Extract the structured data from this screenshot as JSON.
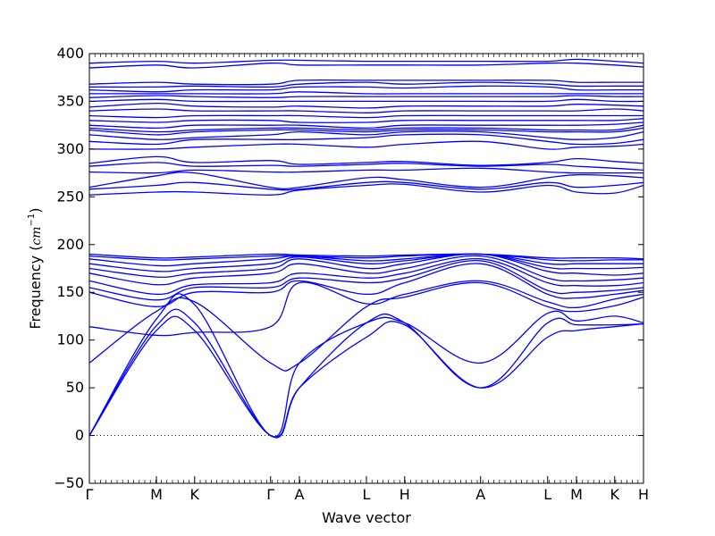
{
  "chart_data": {
    "type": "line",
    "title": "",
    "xlabel": "Wave vector",
    "ylabel": "Frequency (cm⁻¹)",
    "ylabel_main": "Frequency (",
    "ylabel_unit": "cm",
    "ylabel_exp": "−1",
    "ylabel_close": ")",
    "ylim": [
      -50,
      400
    ],
    "yticks": [
      -50,
      0,
      50,
      100,
      150,
      200,
      250,
      300,
      350,
      400
    ],
    "xlim": [
      0,
      1
    ],
    "xticks": [
      {
        "label": "Γ",
        "x": 0.0
      },
      {
        "label": "M",
        "x": 0.121
      },
      {
        "label": "K",
        "x": 0.19
      },
      {
        "label": "Γ",
        "x": 0.327
      },
      {
        "label": "A",
        "x": 0.379
      },
      {
        "label": "L",
        "x": 0.5
      },
      {
        "label": "H",
        "x": 0.569
      },
      {
        "label": "A",
        "x": 0.706
      },
      {
        "label": "L",
        "x": 0.827
      },
      {
        "label": "M",
        "x": 0.879
      },
      {
        "label": "K",
        "x": 0.948
      },
      {
        "label": "H",
        "x": 1.0
      }
    ],
    "zero_line": {
      "y": 0,
      "style": "dotted"
    },
    "line_color": "#0000ff",
    "grid": false,
    "series": [
      {
        "x": [
          0,
          0.121,
          0.19,
          0.327,
          0.379,
          0.5,
          0.569,
          0.706,
          0.827,
          0.879,
          0.948,
          1
        ],
        "y": [
          0,
          110,
          110,
          0,
          50,
          103,
          116,
          50,
          103,
          110,
          114,
          117
        ]
      },
      {
        "x": [
          0,
          0.121,
          0.19,
          0.327,
          0.379,
          0.5,
          0.569,
          0.706,
          0.827,
          0.879,
          0.948,
          1
        ],
        "y": [
          0,
          115,
          118,
          0,
          50,
          118,
          118,
          50,
          118,
          116,
          116,
          117
        ]
      },
      {
        "x": [
          0,
          0.121,
          0.19,
          0.327,
          0.379,
          0.5,
          0.569,
          0.706,
          0.827,
          0.879,
          0.948,
          1
        ],
        "y": [
          0,
          122,
          137,
          0,
          76,
          118,
          118,
          76,
          128,
          120,
          125,
          118
        ]
      },
      {
        "x": [
          0,
          0.121,
          0.19,
          0.327,
          0.379,
          0.5,
          0.569,
          0.706,
          0.827,
          0.879,
          0.948,
          1
        ],
        "y": [
          76,
          130,
          140,
          76,
          76,
          135,
          145,
          160,
          135,
          130,
          136,
          145
        ]
      },
      {
        "x": [
          0,
          0.121,
          0.19,
          0.327,
          0.379,
          0.5,
          0.569,
          0.706,
          0.827,
          0.879,
          0.948,
          1
        ],
        "y": [
          114,
          105,
          108,
          114,
          160,
          138,
          148,
          162,
          140,
          134,
          143,
          148
        ]
      },
      {
        "x": [
          0,
          0.121,
          0.19,
          0.327,
          0.379,
          0.5,
          0.569,
          0.706,
          0.827,
          0.879,
          0.948,
          1
        ],
        "y": [
          150,
          135,
          150,
          150,
          162,
          148,
          160,
          180,
          148,
          144,
          148,
          152
        ]
      },
      {
        "x": [
          0,
          0.121,
          0.19,
          0.327,
          0.379,
          0.5,
          0.569,
          0.706,
          0.827,
          0.879,
          0.948,
          1
        ],
        "y": [
          155,
          142,
          155,
          155,
          165,
          160,
          165,
          183,
          152,
          150,
          152,
          155
        ]
      },
      {
        "x": [
          0,
          0.121,
          0.19,
          0.327,
          0.379,
          0.5,
          0.569,
          0.706,
          0.827,
          0.879,
          0.948,
          1
        ],
        "y": [
          162,
          148,
          158,
          160,
          170,
          165,
          170,
          185,
          160,
          157,
          157,
          160
        ]
      },
      {
        "x": [
          0,
          0.121,
          0.19,
          0.327,
          0.379,
          0.5,
          0.569,
          0.706,
          0.827,
          0.879,
          0.948,
          1
        ],
        "y": [
          170,
          158,
          165,
          170,
          180,
          170,
          175,
          188,
          165,
          162,
          163,
          165
        ]
      },
      {
        "x": [
          0,
          0.121,
          0.19,
          0.327,
          0.379,
          0.5,
          0.569,
          0.706,
          0.827,
          0.879,
          0.948,
          1
        ],
        "y": [
          175,
          166,
          170,
          175,
          185,
          175,
          180,
          190,
          172,
          170,
          168,
          170
        ]
      },
      {
        "x": [
          0,
          0.121,
          0.19,
          0.327,
          0.379,
          0.5,
          0.569,
          0.706,
          0.827,
          0.879,
          0.948,
          1
        ],
        "y": [
          180,
          172,
          175,
          180,
          187,
          180,
          183,
          190,
          176,
          175,
          175,
          176
        ]
      },
      {
        "x": [
          0,
          0.121,
          0.19,
          0.327,
          0.379,
          0.5,
          0.569,
          0.706,
          0.827,
          0.879,
          0.948,
          1
        ],
        "y": [
          185,
          178,
          180,
          185,
          188,
          183,
          185,
          190,
          180,
          180,
          180,
          180
        ]
      },
      {
        "x": [
          0,
          0.121,
          0.19,
          0.327,
          0.379,
          0.5,
          0.569,
          0.706,
          0.827,
          0.879,
          0.948,
          1
        ],
        "y": [
          188,
          184,
          185,
          188,
          188,
          186,
          188,
          190,
          184,
          183,
          184,
          184
        ]
      },
      {
        "x": [
          0,
          0.121,
          0.19,
          0.327,
          0.379,
          0.5,
          0.569,
          0.706,
          0.827,
          0.879,
          0.948,
          1
        ],
        "y": [
          190,
          186,
          187,
          190,
          189,
          188,
          189,
          190,
          186,
          186,
          186,
          185
        ]
      },
      {
        "x": [
          0,
          0.121,
          0.19,
          0.327,
          0.379,
          0.5,
          0.569,
          0.706,
          0.827,
          0.879,
          0.948,
          1
        ],
        "y": [
          252,
          255,
          255,
          252,
          257,
          262,
          263,
          255,
          262,
          255,
          254,
          262
        ]
      },
      {
        "x": [
          0,
          0.121,
          0.19,
          0.327,
          0.379,
          0.5,
          0.569,
          0.706,
          0.827,
          0.879,
          0.948,
          1
        ],
        "y": [
          258,
          262,
          265,
          258,
          258,
          265,
          265,
          258,
          265,
          260,
          262,
          265
        ]
      },
      {
        "x": [
          0,
          0.121,
          0.19,
          0.327,
          0.379,
          0.5,
          0.569,
          0.706,
          0.827,
          0.879,
          0.948,
          1
        ],
        "y": [
          260,
          272,
          275,
          260,
          260,
          270,
          268,
          260,
          270,
          273,
          272,
          270
        ]
      },
      {
        "x": [
          0,
          0.121,
          0.19,
          0.327,
          0.379,
          0.5,
          0.569,
          0.706,
          0.827,
          0.879,
          0.948,
          1
        ],
        "y": [
          276,
          275,
          278,
          276,
          276,
          278,
          278,
          280,
          276,
          275,
          275,
          275
        ]
      },
      {
        "x": [
          0,
          0.121,
          0.19,
          0.327,
          0.379,
          0.5,
          0.569,
          0.706,
          0.827,
          0.879,
          0.948,
          1
        ],
        "y": [
          282,
          286,
          282,
          283,
          282,
          284,
          285,
          282,
          284,
          282,
          280,
          278
        ]
      },
      {
        "x": [
          0,
          0.121,
          0.19,
          0.327,
          0.379,
          0.5,
          0.569,
          0.706,
          0.827,
          0.879,
          0.948,
          1
        ],
        "y": [
          285,
          292,
          286,
          288,
          284,
          286,
          287,
          283,
          286,
          290,
          287,
          285
        ]
      },
      {
        "x": [
          0,
          0.121,
          0.19,
          0.327,
          0.379,
          0.5,
          0.569,
          0.706,
          0.827,
          0.879,
          0.948,
          1
        ],
        "y": [
          300,
          300,
          302,
          305,
          305,
          302,
          305,
          308,
          300,
          302,
          303,
          305
        ]
      },
      {
        "x": [
          0,
          0.121,
          0.19,
          0.327,
          0.379,
          0.5,
          0.569,
          0.706,
          0.827,
          0.879,
          0.948,
          1
        ],
        "y": [
          308,
          305,
          310,
          310,
          310,
          312,
          315,
          315,
          308,
          305,
          306,
          310
        ]
      },
      {
        "x": [
          0,
          0.121,
          0.19,
          0.327,
          0.379,
          0.5,
          0.569,
          0.706,
          0.827,
          0.879,
          0.948,
          1
        ],
        "y": [
          315,
          310,
          312,
          315,
          318,
          315,
          318,
          318,
          312,
          310,
          312,
          318
        ]
      },
      {
        "x": [
          0,
          0.121,
          0.19,
          0.327,
          0.379,
          0.5,
          0.569,
          0.706,
          0.827,
          0.879,
          0.948,
          1
        ],
        "y": [
          320,
          315,
          318,
          320,
          320,
          318,
          320,
          320,
          318,
          318,
          318,
          322
        ]
      },
      {
        "x": [
          0,
          0.121,
          0.19,
          0.327,
          0.379,
          0.5,
          0.569,
          0.706,
          0.827,
          0.879,
          0.948,
          1
        ],
        "y": [
          322,
          318,
          320,
          322,
          322,
          320,
          322,
          322,
          320,
          320,
          320,
          325
        ]
      },
      {
        "x": [
          0,
          0.121,
          0.19,
          0.327,
          0.379,
          0.5,
          0.569,
          0.706,
          0.827,
          0.879,
          0.948,
          1
        ],
        "y": [
          325,
          322,
          325,
          325,
          325,
          322,
          325,
          325,
          325,
          325,
          326,
          328
        ]
      },
      {
        "x": [
          0,
          0.121,
          0.19,
          0.327,
          0.379,
          0.5,
          0.569,
          0.706,
          0.827,
          0.879,
          0.948,
          1
        ],
        "y": [
          330,
          328,
          330,
          330,
          328,
          328,
          330,
          330,
          330,
          330,
          330,
          332
        ]
      },
      {
        "x": [
          0,
          0.121,
          0.19,
          0.327,
          0.379,
          0.5,
          0.569,
          0.706,
          0.827,
          0.879,
          0.948,
          1
        ],
        "y": [
          335,
          333,
          335,
          335,
          335,
          333,
          335,
          335,
          335,
          335,
          335,
          335
        ]
      },
      {
        "x": [
          0,
          0.121,
          0.19,
          0.327,
          0.379,
          0.5,
          0.569,
          0.706,
          0.827,
          0.879,
          0.948,
          1
        ],
        "y": [
          340,
          342,
          340,
          340,
          340,
          338,
          340,
          340,
          340,
          340,
          342,
          340
        ]
      },
      {
        "x": [
          0,
          0.121,
          0.19,
          0.327,
          0.379,
          0.5,
          0.569,
          0.706,
          0.827,
          0.879,
          0.948,
          1
        ],
        "y": [
          344,
          348,
          345,
          344,
          345,
          343,
          345,
          345,
          345,
          347,
          346,
          345
        ]
      },
      {
        "x": [
          0,
          0.121,
          0.19,
          0.327,
          0.379,
          0.5,
          0.569,
          0.706,
          0.827,
          0.879,
          0.948,
          1
        ],
        "y": [
          350,
          352,
          350,
          350,
          350,
          350,
          350,
          350,
          350,
          352,
          350,
          350
        ]
      },
      {
        "x": [
          0,
          0.121,
          0.19,
          0.327,
          0.379,
          0.5,
          0.569,
          0.706,
          0.827,
          0.879,
          0.948,
          1
        ],
        "y": [
          354,
          356,
          355,
          354,
          355,
          355,
          355,
          355,
          355,
          356,
          355,
          355
        ]
      },
      {
        "x": [
          0,
          0.121,
          0.19,
          0.327,
          0.379,
          0.5,
          0.569,
          0.706,
          0.827,
          0.879,
          0.948,
          1
        ],
        "y": [
          358,
          358,
          358,
          358,
          360,
          358,
          358,
          358,
          358,
          358,
          358,
          358
        ]
      },
      {
        "x": [
          0,
          0.121,
          0.19,
          0.327,
          0.379,
          0.5,
          0.569,
          0.706,
          0.827,
          0.879,
          0.948,
          1
        ],
        "y": [
          362,
          360,
          362,
          362,
          365,
          365,
          364,
          366,
          365,
          362,
          362,
          362
        ]
      },
      {
        "x": [
          0,
          0.121,
          0.19,
          0.327,
          0.379,
          0.5,
          0.569,
          0.706,
          0.827,
          0.879,
          0.948,
          1
        ],
        "y": [
          365,
          365,
          366,
          365,
          368,
          370,
          368,
          370,
          368,
          366,
          366,
          366
        ]
      },
      {
        "x": [
          0,
          0.121,
          0.19,
          0.327,
          0.379,
          0.5,
          0.569,
          0.706,
          0.827,
          0.879,
          0.948,
          1
        ],
        "y": [
          368,
          370,
          368,
          368,
          372,
          372,
          372,
          372,
          372,
          370,
          370,
          370
        ]
      },
      {
        "x": [
          0,
          0.121,
          0.19,
          0.327,
          0.379,
          0.5,
          0.569,
          0.706,
          0.827,
          0.879,
          0.948,
          1
        ],
        "y": [
          385,
          388,
          385,
          390,
          388,
          388,
          388,
          388,
          390,
          390,
          388,
          386
        ]
      },
      {
        "x": [
          0,
          0.121,
          0.19,
          0.327,
          0.379,
          0.5,
          0.569,
          0.706,
          0.827,
          0.879,
          0.948,
          1
        ],
        "y": [
          390,
          392,
          390,
          393,
          393,
          392,
          392,
          392,
          392,
          394,
          392,
          390
        ]
      }
    ]
  }
}
